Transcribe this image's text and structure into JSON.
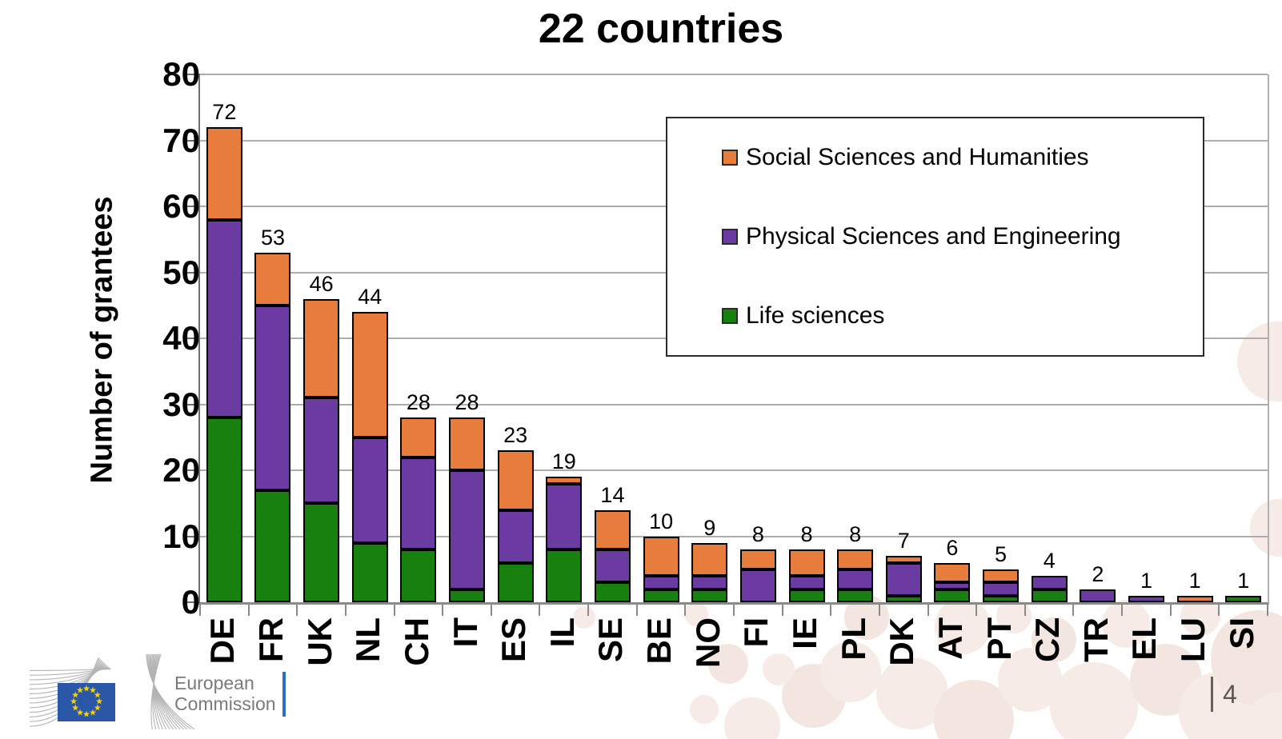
{
  "title": "22 countries",
  "chart_data": {
    "type": "bar",
    "stacked": true,
    "title": "22 countries",
    "xlabel": "",
    "ylabel": "Number of grantees",
    "ylim": [
      0,
      80
    ],
    "ytick_step": 10,
    "yticks": [
      0,
      10,
      20,
      30,
      40,
      50,
      60,
      70,
      80
    ],
    "grid": true,
    "legend_position": "upper-right-box",
    "categories": [
      "DE",
      "FR",
      "UK",
      "NL",
      "CH",
      "IT",
      "ES",
      "IL",
      "SE",
      "BE",
      "NO",
      "FI",
      "IE",
      "PL",
      "DK",
      "AT",
      "PT",
      "CZ",
      "TR",
      "EL",
      "LU",
      "SI"
    ],
    "totals": [
      72,
      53,
      46,
      44,
      28,
      28,
      23,
      19,
      14,
      10,
      9,
      8,
      8,
      8,
      7,
      6,
      5,
      4,
      2,
      1,
      1,
      1
    ],
    "series": [
      {
        "name": "Social Sciences and Humanities",
        "color": "#e87c3c",
        "values": [
          14,
          8,
          15,
          19,
          6,
          8,
          9,
          1,
          6,
          6,
          5,
          3,
          4,
          3,
          1,
          3,
          2,
          0,
          0,
          0,
          1,
          0
        ]
      },
      {
        "name": "Physical Sciences and Engineering",
        "color": "#6b3ba1",
        "values": [
          30,
          28,
          16,
          16,
          14,
          18,
          8,
          10,
          5,
          2,
          2,
          5,
          2,
          3,
          5,
          1,
          2,
          2,
          2,
          1,
          0,
          0
        ]
      },
      {
        "name": "Life sciences",
        "color": "#17800f",
        "values": [
          28,
          17,
          15,
          9,
          8,
          2,
          6,
          8,
          3,
          2,
          2,
          0,
          2,
          2,
          1,
          2,
          1,
          2,
          0,
          0,
          0,
          1
        ]
      }
    ]
  },
  "footer": {
    "logo_line1": "European",
    "logo_line2": "Commission",
    "page_number": "4"
  }
}
